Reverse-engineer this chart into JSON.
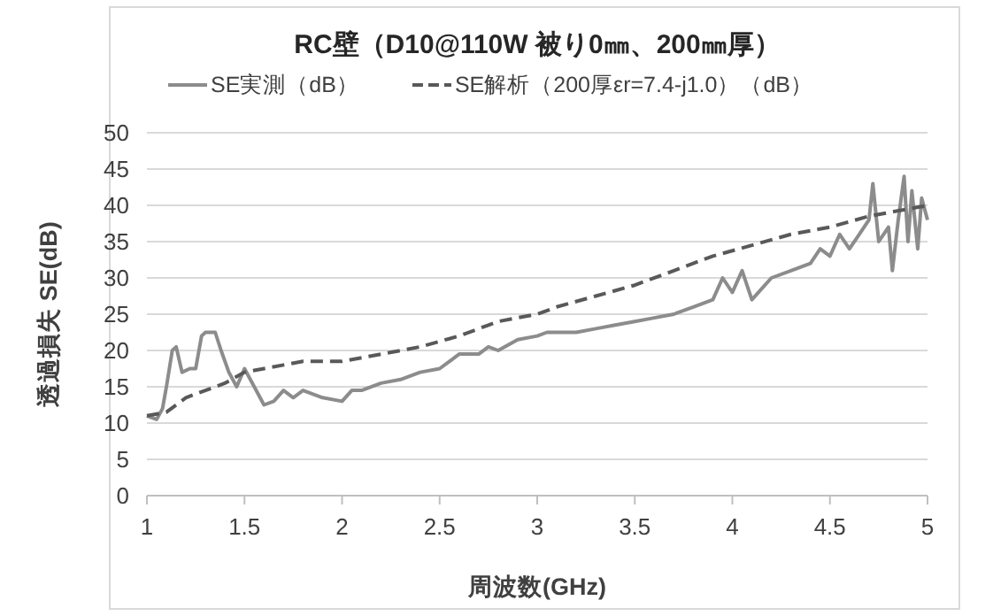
{
  "chart_data": {
    "type": "line",
    "title": "RC壁（D10@110W 被り0㎜、200㎜厚）",
    "xlabel": "周波数(GHz)",
    "ylabel": "透過損失  SE(dB)",
    "xlim": [
      1,
      5
    ],
    "ylim": [
      0,
      50
    ],
    "xticks": [
      1,
      1.5,
      2,
      2.5,
      3,
      3.5,
      4,
      4.5,
      5
    ],
    "yticks": [
      0,
      5,
      10,
      15,
      20,
      25,
      30,
      35,
      40,
      45,
      50
    ],
    "grid": "y",
    "legend": "top",
    "series": [
      {
        "name": "SE実測（dB）",
        "color": "#8c8c8c",
        "line_style": "solid",
        "x": [
          1.0,
          1.05,
          1.08,
          1.1,
          1.13,
          1.15,
          1.18,
          1.22,
          1.25,
          1.28,
          1.3,
          1.35,
          1.38,
          1.42,
          1.46,
          1.5,
          1.55,
          1.6,
          1.65,
          1.7,
          1.75,
          1.8,
          1.9,
          2.0,
          2.05,
          2.1,
          2.2,
          2.3,
          2.4,
          2.5,
          2.6,
          2.7,
          2.75,
          2.8,
          2.9,
          3.0,
          3.05,
          3.2,
          3.3,
          3.4,
          3.5,
          3.6,
          3.7,
          3.8,
          3.9,
          3.95,
          4.0,
          4.05,
          4.1,
          4.2,
          4.3,
          4.4,
          4.45,
          4.5,
          4.55,
          4.6,
          4.65,
          4.7,
          4.72,
          4.75,
          4.8,
          4.82,
          4.85,
          4.88,
          4.9,
          4.92,
          4.95,
          4.97,
          5.0
        ],
        "values": [
          11,
          10.5,
          12,
          15,
          20,
          20.5,
          17,
          17.5,
          17.5,
          22,
          22.5,
          22.5,
          20,
          17,
          15,
          17.5,
          15,
          12.5,
          13,
          14.5,
          13.5,
          14.5,
          13.5,
          13,
          14.5,
          14.5,
          15.5,
          16,
          17,
          17.5,
          19.5,
          19.5,
          20.5,
          20,
          21.5,
          22,
          22.5,
          22.5,
          23,
          23.5,
          24,
          24.5,
          25,
          26,
          27,
          30,
          28,
          31,
          27,
          30,
          31,
          32,
          34,
          33,
          36,
          34,
          36,
          38,
          43,
          35,
          37,
          31,
          38,
          44,
          35,
          42,
          34,
          41,
          38
        ]
      },
      {
        "name": "SE解析（200厚εr=7.4-j1.0）（dB）",
        "color": "#595959",
        "line_style": "dashed",
        "x": [
          1.0,
          1.1,
          1.2,
          1.3,
          1.4,
          1.5,
          1.6,
          1.7,
          1.8,
          2.0,
          2.2,
          2.4,
          2.6,
          2.75,
          2.8,
          3.0,
          3.1,
          3.3,
          3.5,
          3.7,
          3.9,
          4.1,
          4.3,
          4.5,
          4.7,
          4.9,
          5.0
        ],
        "values": [
          11,
          11.5,
          13.5,
          14.5,
          15.5,
          17,
          17.5,
          18,
          18.5,
          18.5,
          19.5,
          20.5,
          22,
          23.5,
          24,
          25,
          26,
          27.5,
          29,
          31,
          33,
          34.5,
          36,
          37,
          38.5,
          39.5,
          40
        ]
      }
    ]
  }
}
